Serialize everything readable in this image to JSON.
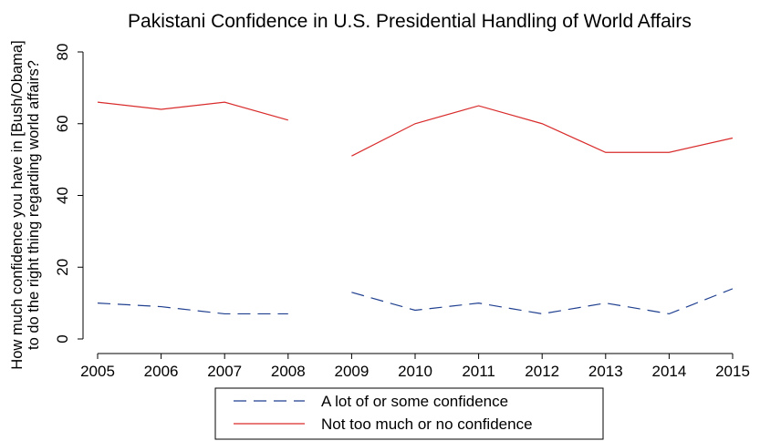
{
  "chart_data": {
    "type": "line",
    "title": "Pakistani Confidence in U.S. Presidential Handling of World Affairs",
    "ylabel_line1": "How much confidence you have in [Bush/Obama]",
    "ylabel_line2": "to do the right thing regarding world affairs?",
    "xlabel": "",
    "x": [
      2005,
      2006,
      2007,
      2008,
      2009,
      2010,
      2011,
      2012,
      2013,
      2014,
      2015
    ],
    "xlim": [
      2005,
      2015
    ],
    "ylim": [
      0,
      80
    ],
    "yticks": [
      0,
      20,
      40,
      60,
      80
    ],
    "grid": false,
    "legend_position": "bottom",
    "series": [
      {
        "name": "A lot of or some confidence",
        "style": "dashed",
        "color": "#1f3f8f",
        "values": [
          10,
          9,
          7,
          7,
          13,
          8,
          10,
          7,
          10,
          7,
          14
        ],
        "gap_after_index": 3
      },
      {
        "name": "Not too much or no confidence",
        "style": "solid",
        "color": "#d92b2b",
        "values": [
          66,
          64,
          66,
          61,
          51,
          60,
          65,
          60,
          52,
          52,
          56
        ],
        "gap_after_index": 3
      }
    ]
  }
}
